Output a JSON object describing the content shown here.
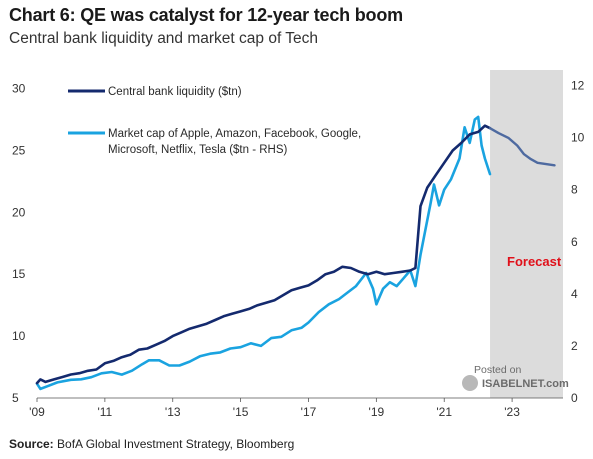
{
  "header": {
    "title": "Chart 6: QE was catalyst for 12-year tech boom",
    "subtitle": "Central bank liquidity and market cap of Tech"
  },
  "footer": {
    "source_label": "Source:",
    "source_text": "BofA Global Investment Strategy, Bloomberg"
  },
  "watermark": {
    "line1": "Posted on",
    "line2": "ISABELNET.com"
  },
  "colors": {
    "liquidity": "#142a6e",
    "tech": "#1aa3e0",
    "forecast_line": "#4e6aa0",
    "forecast_band": "#dcdcdc",
    "forecast_label": "#e0101a"
  },
  "chart_data": {
    "type": "line",
    "title": "Chart 6: QE was catalyst for 12-year tech boom",
    "subtitle": "Central bank liquidity and market cap of Tech",
    "x_ticks": [
      "'09",
      "'11",
      "'13",
      "'15",
      "'17",
      "'19",
      "'21",
      "'23"
    ],
    "x_range": [
      2009,
      2024.5
    ],
    "y_left": {
      "ticks": [
        "5",
        "10",
        "15",
        "20",
        "25",
        "30"
      ],
      "range": [
        5,
        31.5
      ]
    },
    "y_right": {
      "ticks": [
        "0",
        "2",
        "4",
        "6",
        "8",
        "10",
        "12"
      ],
      "range": [
        0,
        12.6
      ]
    },
    "grid": false,
    "legend_position": "top-left",
    "forecast": {
      "label": "Forecast",
      "start": 2022.35,
      "end": 2024.5
    },
    "series": [
      {
        "name": "Central bank liquidity ($tn)",
        "axis": "left",
        "points": [
          [
            2009.0,
            6.2
          ],
          [
            2009.1,
            6.5
          ],
          [
            2009.25,
            6.3
          ],
          [
            2009.5,
            6.5
          ],
          [
            2009.75,
            6.7
          ],
          [
            2010.0,
            6.9
          ],
          [
            2010.25,
            7.0
          ],
          [
            2010.5,
            7.2
          ],
          [
            2010.75,
            7.3
          ],
          [
            2011.0,
            7.8
          ],
          [
            2011.25,
            8.0
          ],
          [
            2011.5,
            8.3
          ],
          [
            2011.75,
            8.5
          ],
          [
            2012.0,
            8.9
          ],
          [
            2012.25,
            9.0
          ],
          [
            2012.5,
            9.3
          ],
          [
            2012.75,
            9.6
          ],
          [
            2013.0,
            10.0
          ],
          [
            2013.25,
            10.3
          ],
          [
            2013.5,
            10.6
          ],
          [
            2013.75,
            10.8
          ],
          [
            2014.0,
            11.0
          ],
          [
            2014.25,
            11.3
          ],
          [
            2014.5,
            11.6
          ],
          [
            2014.75,
            11.8
          ],
          [
            2015.0,
            12.0
          ],
          [
            2015.25,
            12.2
          ],
          [
            2015.5,
            12.5
          ],
          [
            2015.75,
            12.7
          ],
          [
            2016.0,
            12.9
          ],
          [
            2016.25,
            13.3
          ],
          [
            2016.5,
            13.7
          ],
          [
            2016.75,
            13.9
          ],
          [
            2017.0,
            14.1
          ],
          [
            2017.25,
            14.5
          ],
          [
            2017.5,
            15.0
          ],
          [
            2017.75,
            15.2
          ],
          [
            2018.0,
            15.6
          ],
          [
            2018.25,
            15.5
          ],
          [
            2018.5,
            15.2
          ],
          [
            2018.75,
            15.0
          ],
          [
            2019.0,
            15.2
          ],
          [
            2019.25,
            15.0
          ],
          [
            2019.5,
            15.1
          ],
          [
            2019.75,
            15.2
          ],
          [
            2020.0,
            15.3
          ],
          [
            2020.15,
            15.5
          ],
          [
            2020.3,
            20.5
          ],
          [
            2020.5,
            22.0
          ],
          [
            2020.75,
            23.0
          ],
          [
            2021.0,
            24.0
          ],
          [
            2021.25,
            25.0
          ],
          [
            2021.5,
            25.6
          ],
          [
            2021.75,
            26.3
          ],
          [
            2022.0,
            26.5
          ],
          [
            2022.2,
            27.0
          ],
          [
            2022.35,
            26.8
          ]
        ]
      },
      {
        "name": "Market cap of Apple, Amazon, Facebook, Google, Microsoft, Netflix, Tesla ($tn - RHS)",
        "axis": "right",
        "points": [
          [
            2009.0,
            0.55
          ],
          [
            2009.1,
            0.35
          ],
          [
            2009.3,
            0.45
          ],
          [
            2009.6,
            0.6
          ],
          [
            2010.0,
            0.7
          ],
          [
            2010.3,
            0.72
          ],
          [
            2010.6,
            0.8
          ],
          [
            2010.9,
            0.95
          ],
          [
            2011.2,
            1.0
          ],
          [
            2011.5,
            0.9
          ],
          [
            2011.8,
            1.05
          ],
          [
            2012.1,
            1.3
          ],
          [
            2012.3,
            1.45
          ],
          [
            2012.6,
            1.45
          ],
          [
            2012.9,
            1.25
          ],
          [
            2013.2,
            1.25
          ],
          [
            2013.5,
            1.4
          ],
          [
            2013.8,
            1.6
          ],
          [
            2014.1,
            1.7
          ],
          [
            2014.4,
            1.75
          ],
          [
            2014.7,
            1.9
          ],
          [
            2015.0,
            1.95
          ],
          [
            2015.3,
            2.1
          ],
          [
            2015.6,
            2.0
          ],
          [
            2015.9,
            2.3
          ],
          [
            2016.2,
            2.35
          ],
          [
            2016.5,
            2.6
          ],
          [
            2016.8,
            2.7
          ],
          [
            2017.0,
            2.9
          ],
          [
            2017.3,
            3.3
          ],
          [
            2017.6,
            3.6
          ],
          [
            2017.9,
            3.8
          ],
          [
            2018.1,
            4.0
          ],
          [
            2018.4,
            4.3
          ],
          [
            2018.7,
            4.8
          ],
          [
            2018.9,
            4.2
          ],
          [
            2019.0,
            3.6
          ],
          [
            2019.2,
            4.2
          ],
          [
            2019.4,
            4.45
          ],
          [
            2019.6,
            4.3
          ],
          [
            2019.8,
            4.6
          ],
          [
            2020.0,
            4.9
          ],
          [
            2020.15,
            4.3
          ],
          [
            2020.3,
            5.5
          ],
          [
            2020.45,
            6.5
          ],
          [
            2020.6,
            7.5
          ],
          [
            2020.7,
            8.2
          ],
          [
            2020.85,
            7.4
          ],
          [
            2021.0,
            8.0
          ],
          [
            2021.2,
            8.4
          ],
          [
            2021.45,
            9.2
          ],
          [
            2021.6,
            10.4
          ],
          [
            2021.75,
            9.8
          ],
          [
            2021.9,
            10.7
          ],
          [
            2022.0,
            10.8
          ],
          [
            2022.1,
            9.7
          ],
          [
            2022.2,
            9.2
          ],
          [
            2022.35,
            8.6
          ]
        ]
      },
      {
        "name": "Forecast",
        "axis": "left",
        "points": [
          [
            2022.35,
            26.8
          ],
          [
            2022.6,
            26.4
          ],
          [
            2022.9,
            26.0
          ],
          [
            2023.15,
            25.4
          ],
          [
            2023.35,
            24.7
          ],
          [
            2023.55,
            24.3
          ],
          [
            2023.75,
            24.0
          ],
          [
            2024.0,
            23.9
          ],
          [
            2024.25,
            23.8
          ]
        ]
      }
    ]
  }
}
